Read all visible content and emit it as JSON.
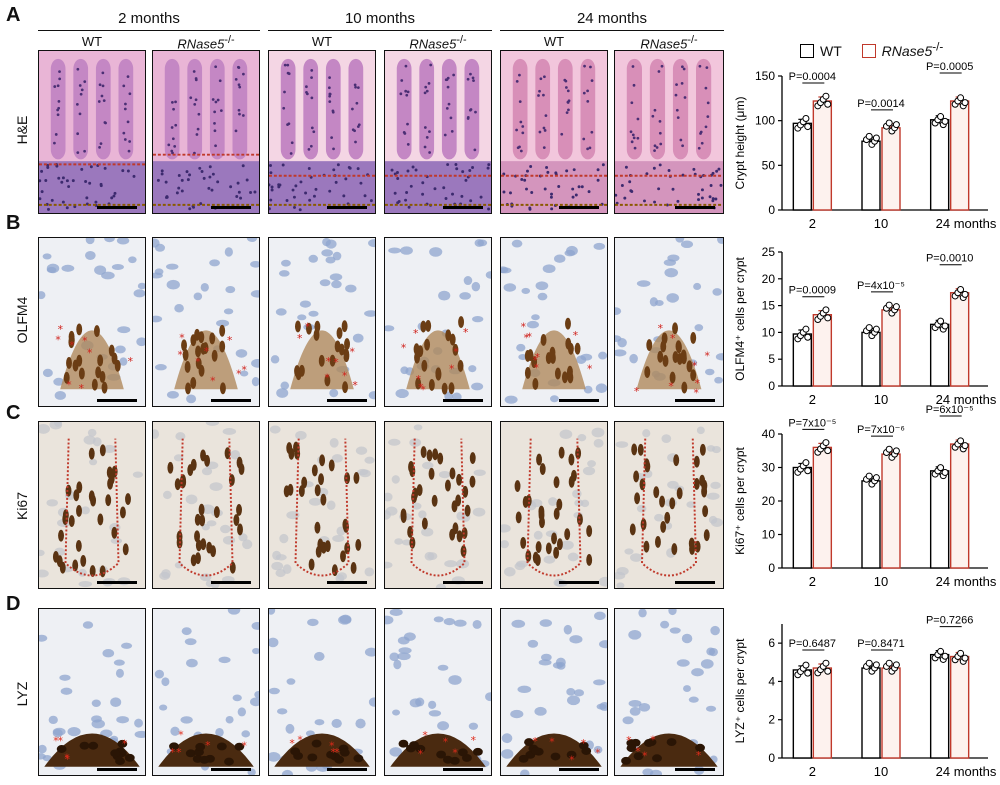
{
  "figure": {
    "panels": [
      {
        "letter": "A",
        "row_label": "H&E"
      },
      {
        "letter": "B",
        "row_label": "OLFM4"
      },
      {
        "letter": "C",
        "row_label": "Ki67"
      },
      {
        "letter": "D",
        "row_label": "LYZ"
      }
    ],
    "ages": [
      "2 months",
      "10 months",
      "24 months"
    ],
    "genotypes": [
      "WT",
      "RNase5"
    ],
    "genotype_superscript": "-/-",
    "legend": {
      "wt": "WT",
      "ko": "RNase5",
      "ko_sup": "-/-",
      "wt_color": "#000000",
      "ko_color": "#c0392b"
    }
  },
  "chart_data": [
    {
      "type": "bar",
      "ylabel": "Crypt height (μm)",
      "categories": [
        "2",
        "10",
        "24 months"
      ],
      "ylim": [
        0,
        150
      ],
      "yticks": [
        "0",
        "50",
        "100",
        "150"
      ],
      "series": [
        {
          "name": "WT",
          "values": [
            97,
            77,
            101
          ]
        },
        {
          "name": "RNase5-/-",
          "values": [
            122,
            92,
            122
          ]
        }
      ],
      "pvalues": [
        "P=0.0004",
        "P=0.0014",
        "P=0.0005"
      ]
    },
    {
      "type": "bar",
      "ylabel": "OLFM4⁺ cells per crypt",
      "categories": [
        "2",
        "10",
        "24 months"
      ],
      "ylim": [
        0,
        25
      ],
      "yticks": [
        "0",
        "5",
        "10",
        "15",
        "20",
        "25"
      ],
      "series": [
        {
          "name": "WT",
          "values": [
            9.7,
            10,
            11.5
          ]
        },
        {
          "name": "RNase5-/-",
          "values": [
            13.3,
            14.2,
            17.4
          ]
        }
      ],
      "pvalues": [
        "P=0.0009",
        "P=4x10⁻⁵",
        "P=0.0010"
      ]
    },
    {
      "type": "bar",
      "ylabel": "Ki67⁺ cells per crypt",
      "categories": [
        "2",
        "10",
        "24 months"
      ],
      "ylim": [
        0,
        40
      ],
      "yticks": [
        "0",
        "10",
        "20",
        "30",
        "40"
      ],
      "series": [
        {
          "name": "WT",
          "values": [
            30,
            26,
            29
          ]
        },
        {
          "name": "RNase5-/-",
          "values": [
            36,
            34,
            37
          ]
        }
      ],
      "pvalues": [
        "P=7x10⁻⁵",
        "P=7x10⁻⁶",
        "P=6x10⁻⁵"
      ]
    },
    {
      "type": "bar",
      "ylabel": "LYZ⁺ cells per crypt",
      "categories": [
        "2",
        "10",
        "24 months"
      ],
      "ylim": [
        0,
        7
      ],
      "yticks": [
        "0",
        "2",
        "4",
        "6"
      ],
      "series": [
        {
          "name": "WT",
          "values": [
            4.6,
            4.7,
            5.4
          ]
        },
        {
          "name": "RNase5-/-",
          "values": [
            4.7,
            4.7,
            5.3
          ]
        }
      ],
      "pvalues": [
        "P=0.6487",
        "P=0.8471",
        "P=0.7266"
      ]
    }
  ]
}
